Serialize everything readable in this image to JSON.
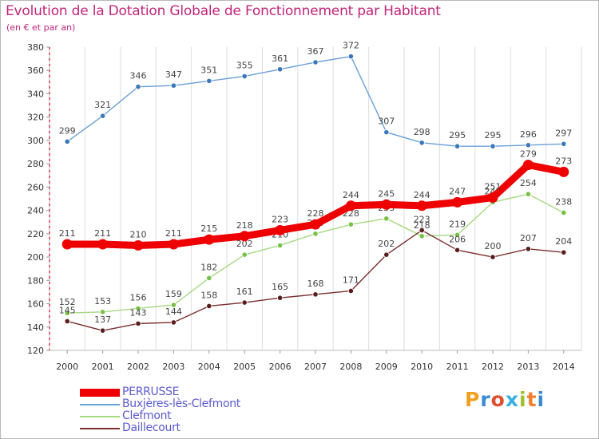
{
  "header": {
    "title": "Evolution de la Dotation Globale de Fonctionnement par Habitant",
    "subtitle": "(en € et par an)"
  },
  "brand": {
    "letters": [
      "P",
      "r",
      "o",
      "x",
      "i",
      "t",
      "i"
    ],
    "colors": [
      "#f0a020",
      "#3a8ad0",
      "#e05030",
      "#3ab0e0",
      "#a0c030",
      "#f08030",
      "#3a8ad0"
    ]
  },
  "chart_data": {
    "type": "line",
    "title": "Evolution de la Dotation Globale de Fonctionnement par Habitant",
    "subtitle": "(en € et par an)",
    "x": [
      "2000",
      "2001",
      "2002",
      "2003",
      "2004",
      "2005",
      "2006",
      "2007",
      "2008",
      "2009",
      "2010",
      "2011",
      "2012",
      "2013",
      "2014"
    ],
    "ylim": [
      120,
      380
    ],
    "yticks": [
      120,
      140,
      160,
      180,
      200,
      220,
      240,
      260,
      280,
      300,
      320,
      340,
      360,
      380
    ],
    "grid": "vertical",
    "legend_position": "bottom-left",
    "series": [
      {
        "name": "Buxjères-lès-Clefmont",
        "color": "#6aa0d8",
        "marker": "#3a78b8",
        "values": [
          299,
          321,
          346,
          347,
          351,
          355,
          361,
          367,
          372,
          307,
          298,
          295,
          295,
          296,
          297
        ]
      },
      {
        "name": "Clefmont",
        "color": "#a6d882",
        "marker": "#78c048",
        "values": [
          152,
          153,
          156,
          159,
          182,
          202,
          210,
          220,
          228,
          233,
          218,
          219,
          247,
          254,
          238
        ]
      },
      {
        "name": "Daillecourt",
        "color": "#7a2e2e",
        "marker": "#5a1e1e",
        "values": [
          145,
          137,
          143,
          144,
          158,
          161,
          165,
          168,
          171,
          202,
          223,
          206,
          200,
          207,
          204
        ]
      },
      {
        "name": "PERRUSSE",
        "color": "#ee0000",
        "marker": "#ee0000",
        "values": [
          211,
          211,
          210,
          211,
          215,
          218,
          223,
          228,
          244,
          245,
          244,
          247,
          251,
          279,
          273
        ]
      }
    ]
  }
}
